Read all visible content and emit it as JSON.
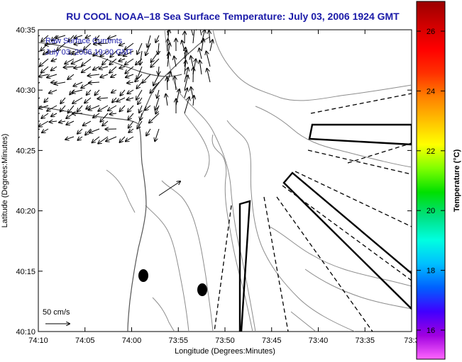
{
  "title": "RU COOL  NOAA–18  Sea Surface Temperature:  July 03, 2006 1924 GMT",
  "annotation": {
    "line1": "Raw Surface Currents",
    "line2": "July 03, 2006 19:00 GMT"
  },
  "x_axis": {
    "label": "Longitude (Degrees:Minutes)",
    "ticks": [
      "74:10",
      "74:05",
      "74:00",
      "73:55",
      "73:50",
      "73:45",
      "73:40",
      "73:35",
      "73:3"
    ]
  },
  "y_axis": {
    "label": "Latitude (Degrees:Minutes)",
    "ticks": [
      "40:35",
      "40:30",
      "40:25",
      "40:20",
      "40:15",
      "40:10"
    ]
  },
  "scale_vector": {
    "label": "50 cm/s"
  },
  "colorbar": {
    "label": "Temperature (°C)",
    "ticks": [
      "26",
      "24",
      "22",
      "20",
      "18",
      "16"
    ],
    "colors": [
      "#ff66ff",
      "#a000e0",
      "#4000ff",
      "#0060ff",
      "#00c0ff",
      "#00ffe0",
      "#00e080",
      "#00e000",
      "#80ff00",
      "#ffff00",
      "#ffc000",
      "#ff8000",
      "#ff3000",
      "#ff0000",
      "#d00000",
      "#9a0000"
    ]
  },
  "features": {
    "station_markers": 2,
    "marker_color": "#000000",
    "contour_color": "#8c8c8c",
    "vector_color": "#000000"
  }
}
